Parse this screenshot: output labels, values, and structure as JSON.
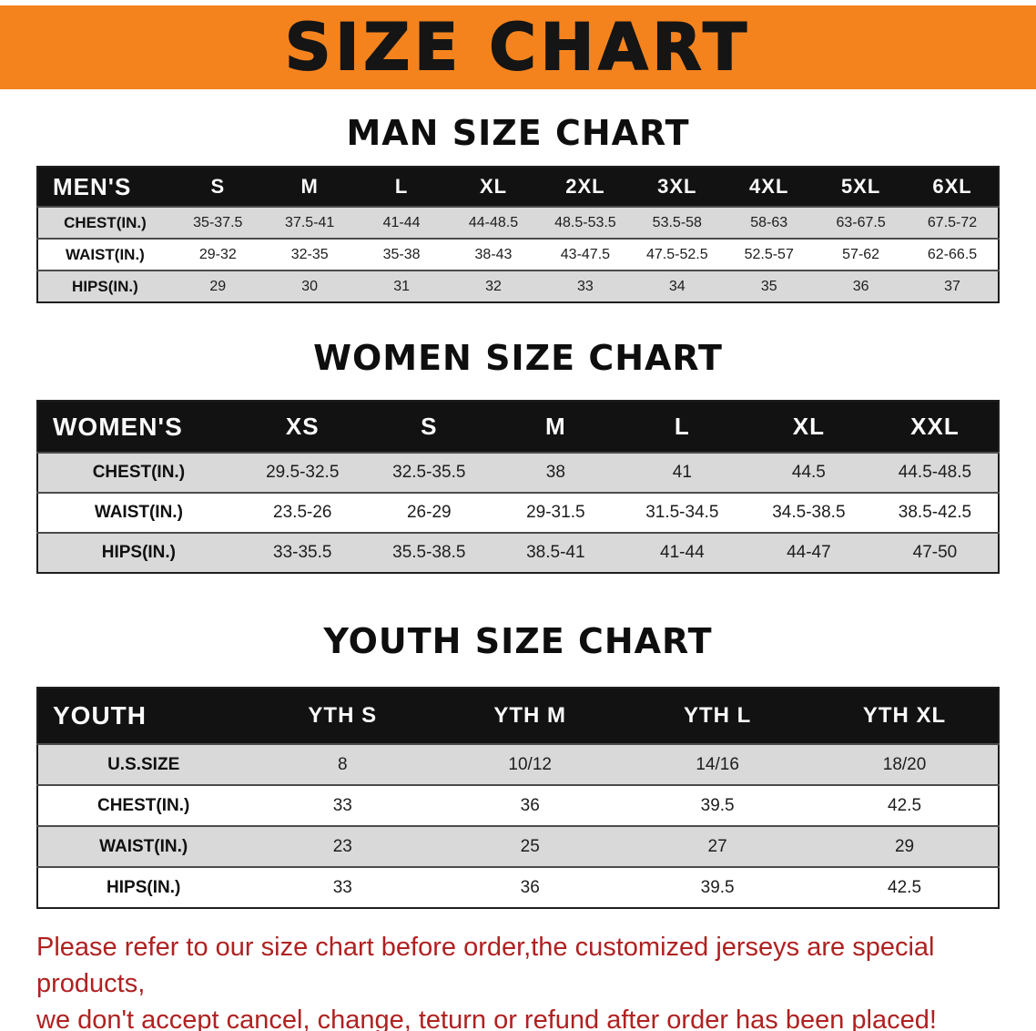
{
  "banner": {
    "title": "SIZE CHART"
  },
  "colors": {
    "banner_bg": "#f5831d",
    "table_header_bg": "#121212",
    "row_shade": "#d9d9d9",
    "note_text": "#b02121"
  },
  "men": {
    "heading": "MAN SIZE CHART",
    "table": {
      "header": [
        "MEN'S",
        "S",
        "M",
        "L",
        "XL",
        "2XL",
        "3XL",
        "4XL",
        "5XL",
        "6XL"
      ],
      "rows": [
        [
          "CHEST(IN.)",
          "35-37.5",
          "37.5-41",
          "41-44",
          "44-48.5",
          "48.5-53.5",
          "53.5-58",
          "58-63",
          "63-67.5",
          "67.5-72"
        ],
        [
          "WAIST(IN.)",
          "29-32",
          "32-35",
          "35-38",
          "38-43",
          "43-47.5",
          "47.5-52.5",
          "52.5-57",
          "57-62",
          "62-66.5"
        ],
        [
          "HIPS(IN.)",
          "29",
          "30",
          "31",
          "32",
          "33",
          "34",
          "35",
          "36",
          "37"
        ]
      ]
    }
  },
  "women": {
    "heading": "WOMEN SIZE CHART",
    "table": {
      "header": [
        "WOMEN'S",
        "XS",
        "S",
        "M",
        "L",
        "XL",
        "XXL"
      ],
      "rows": [
        [
          "CHEST(IN.)",
          "29.5-32.5",
          "32.5-35.5",
          "38",
          "41",
          "44.5",
          "44.5-48.5"
        ],
        [
          "WAIST(IN.)",
          "23.5-26",
          "26-29",
          "29-31.5",
          "31.5-34.5",
          "34.5-38.5",
          "38.5-42.5"
        ],
        [
          "HIPS(IN.)",
          "33-35.5",
          "35.5-38.5",
          "38.5-41",
          "41-44",
          "44-47",
          "47-50"
        ]
      ]
    }
  },
  "youth": {
    "heading": "YOUTH SIZE CHART",
    "table": {
      "header": [
        "YOUTH",
        "YTH S",
        "YTH M",
        "YTH L",
        "YTH XL"
      ],
      "rows": [
        [
          "U.S.SIZE",
          "8",
          "10/12",
          "14/16",
          "18/20"
        ],
        [
          "CHEST(IN.)",
          "33",
          "36",
          "39.5",
          "42.5"
        ],
        [
          "WAIST(IN.)",
          "23",
          "25",
          "27",
          "29"
        ],
        [
          "HIPS(IN.)",
          "33",
          "36",
          "39.5",
          "42.5"
        ]
      ]
    }
  },
  "note": {
    "line1": "Please refer to our size chart before order,the customized jerseys are special products,",
    "line2": "we don't accept cancel, change, teturn or refund after order has been placed!"
  }
}
